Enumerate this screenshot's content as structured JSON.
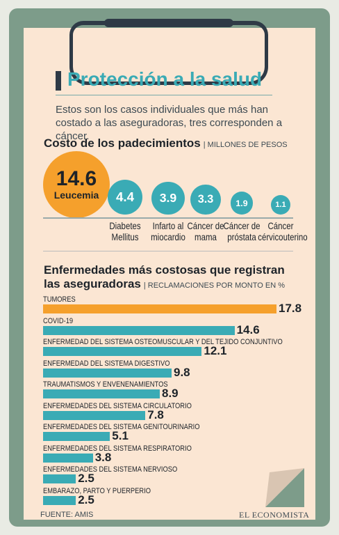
{
  "header": {
    "title": "Protección a la salud",
    "subtitle": "Estos son los casos individuales que más han costado a las aseguradoras, tres corresponden a cáncer."
  },
  "colors": {
    "highlight": "#f5a02c",
    "bar": "#3aabb5",
    "board": "#7d9c8a",
    "paper": "#fbe6d3"
  },
  "chart_data": [
    {
      "type": "bubble",
      "title": "Costo de los padecimientos",
      "unit": "| MILLONES DE PESOS",
      "categories": [
        "Leucemia",
        "Diabetes Mellitus",
        "Infarto al miocardio",
        "Cáncer de mama",
        "Cáncer de próstata",
        "Cáncer cérvicouterino"
      ],
      "values": [
        14.6,
        4.4,
        3.9,
        3.3,
        1.9,
        1.1
      ],
      "label_lines": [
        [
          "Leucemia"
        ],
        [
          "Diabetes",
          "Mellitus"
        ],
        [
          "Infarto al",
          "miocardio"
        ],
        [
          "Cáncer de",
          "mama"
        ],
        [
          "Cáncer de",
          "próstata"
        ],
        [
          "Cáncer",
          "cérvicouterino"
        ]
      ]
    },
    {
      "type": "bar",
      "title_line1": "Enfermedades más costosas que registran",
      "title_line2": "las aseguradoras",
      "unit": "| RECLAMACIONES POR MONTO EN %",
      "categories": [
        "TUMORES",
        "COVID-19",
        "ENFERMEDAD DEL SISTEMA  OSTEOMUSCULAR Y DEL TEJIDO CONJUNTIVO",
        "ENFERMEDAD DEL SISTEMA DIGESTIVO",
        "TRAUMATISMOS Y ENVENENAMIENTOS",
        "ENFERMEDADES DEL SISTEMA CIRCULATORIO",
        "ENFERMEDADES DEL SISTEMA GENITOURINARIO",
        "ENFERMEDADES DEL SISTEMA RESPIRATORIO",
        "ENFERMEDADES DEL SISTEMA NERVIOSO",
        "EMBARAZO, PARTO Y PUERPERIO"
      ],
      "values": [
        17.8,
        14.6,
        12.1,
        9.8,
        8.9,
        7.8,
        5.1,
        3.8,
        2.5,
        2.5
      ]
    }
  ],
  "footer": {
    "source": "FUENTE: AMIS",
    "brand": "EL ECONOMISTA"
  }
}
